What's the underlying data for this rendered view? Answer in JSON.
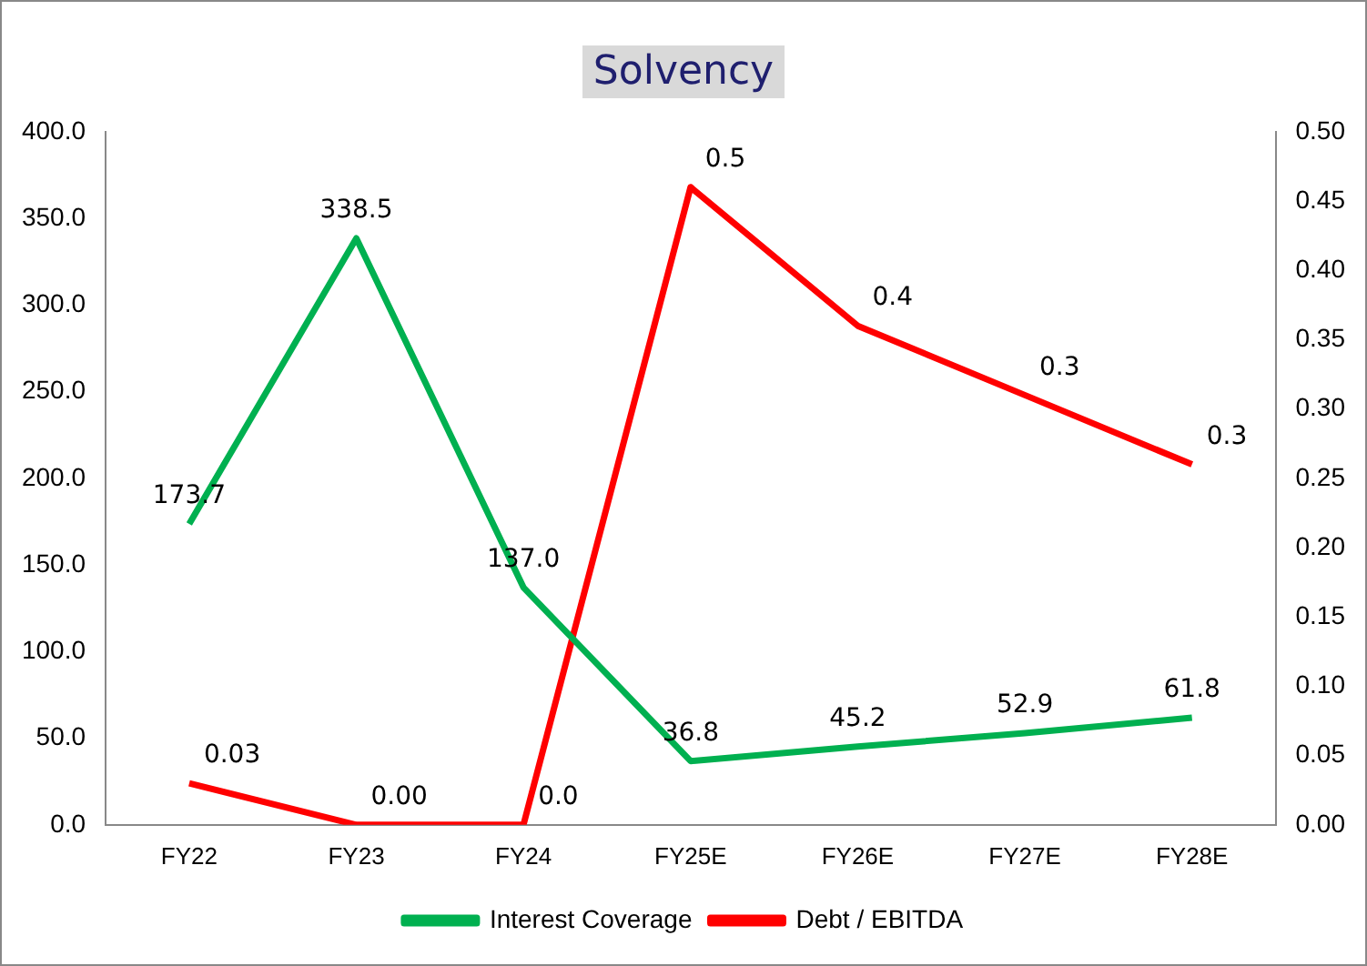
{
  "chart_data": {
    "type": "line",
    "title": "Solvency",
    "categories": [
      "FY22",
      "FY23",
      "FY24",
      "FY25E",
      "FY26E",
      "FY27E",
      "FY28E"
    ],
    "series": [
      {
        "name": "Interest Coverage",
        "color": "#00b050",
        "values": [
          173.7,
          338.5,
          137.0,
          36.8,
          45.2,
          52.9,
          61.8
        ],
        "value_labels": [
          "173.7",
          "338.5",
          "137.0",
          "36.8",
          "45.2",
          "52.9",
          "61.8"
        ]
      },
      {
        "name": "Debt / EBITDA",
        "color": "#ff0000",
        "axis": "y2",
        "values": [
          0.03,
          0,
          0,
          0.46,
          0.36,
          0.31,
          0.26
        ],
        "value_labels": [
          "0.03",
          "0.00",
          "0.0",
          "0.5",
          "0.4",
          "0.3",
          "0.3"
        ]
      }
    ],
    "ylim": [
      0,
      400
    ],
    "yticks": [
      {
        "value": 0,
        "label": "0.0"
      },
      {
        "value": 50,
        "label": "50.0"
      },
      {
        "value": 100,
        "label": "100.0"
      },
      {
        "value": 150,
        "label": "150.0"
      },
      {
        "value": 200,
        "label": "200.0"
      },
      {
        "value": 250,
        "label": "250.0"
      },
      {
        "value": 300,
        "label": "300.0"
      },
      {
        "value": 350,
        "label": "350.0"
      },
      {
        "value": 400,
        "label": "400.0"
      }
    ],
    "y2lim": [
      0,
      0.5
    ],
    "y2ticks": [
      {
        "value": 0,
        "label": "0.00"
      },
      {
        "value": 0.05,
        "label": "0.05"
      },
      {
        "value": 0.1,
        "label": "0.10"
      },
      {
        "value": 0.15,
        "label": "0.15"
      },
      {
        "value": 0.2,
        "label": "0.20"
      },
      {
        "value": 0.25,
        "label": "0.25"
      },
      {
        "value": 0.3,
        "label": "0.30"
      },
      {
        "value": 0.35,
        "label": "0.35"
      },
      {
        "value": 0.4,
        "label": "0.40"
      },
      {
        "value": 0.45,
        "label": "0.45"
      },
      {
        "value": 0.5,
        "label": "0.50"
      }
    ],
    "grid": false,
    "legend": "bottom",
    "marker": "none",
    "line_style": "solid"
  }
}
